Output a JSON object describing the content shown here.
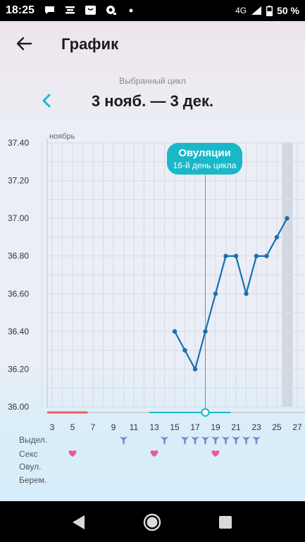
{
  "status_bar": {
    "time": "18:25",
    "network": "4G",
    "battery": "50 %",
    "icons": [
      "message-icon",
      "notification-icon",
      "shop-icon",
      "app-icon",
      "dot-icon",
      "signal-icon",
      "battery-icon"
    ]
  },
  "header": {
    "title": "График"
  },
  "cycle": {
    "caption": "Выбранный цикл",
    "range": "3 нояб. — 3 дек."
  },
  "ovulation": {
    "title": "Овуляции",
    "subtitle": "16-й день цикла",
    "day": 18
  },
  "rows": {
    "discharge": "Выдел.",
    "sex": "Секс",
    "ovulation": "Овул.",
    "pregnancy": "Берем."
  },
  "colors": {
    "line": "#1a6fb0",
    "accent": "#1ab7c8",
    "period": "#f05a63",
    "heart": "#f05a8c",
    "drop": "#8a80c6"
  },
  "chart_data": {
    "type": "line",
    "month_label": "ноябрь",
    "x_ticks": [
      3,
      5,
      7,
      9,
      11,
      13,
      15,
      17,
      19,
      21,
      23,
      25,
      27
    ],
    "y_ticks": [
      "37.40",
      "37.20",
      "37.00",
      "36.80",
      "36.60",
      "36.40",
      "36.20",
      "36.00"
    ],
    "ylim": [
      36.0,
      37.4
    ],
    "xlim": [
      2,
      28
    ],
    "series": [
      {
        "x": [
          15,
          16,
          17,
          18,
          19,
          20,
          21,
          22,
          23,
          24,
          25,
          26
        ],
        "values": [
          36.4,
          36.3,
          36.2,
          36.4,
          36.6,
          36.8,
          36.8,
          36.6,
          36.8,
          36.8,
          36.9,
          37.0
        ]
      }
    ],
    "today": 26,
    "period_days": [
      3,
      6
    ],
    "fertile_days": [
      13,
      20
    ],
    "discharge_days": [
      10,
      14,
      16,
      17,
      18,
      19,
      20,
      21,
      22,
      23
    ],
    "sex_days": [
      5,
      13,
      19
    ]
  }
}
